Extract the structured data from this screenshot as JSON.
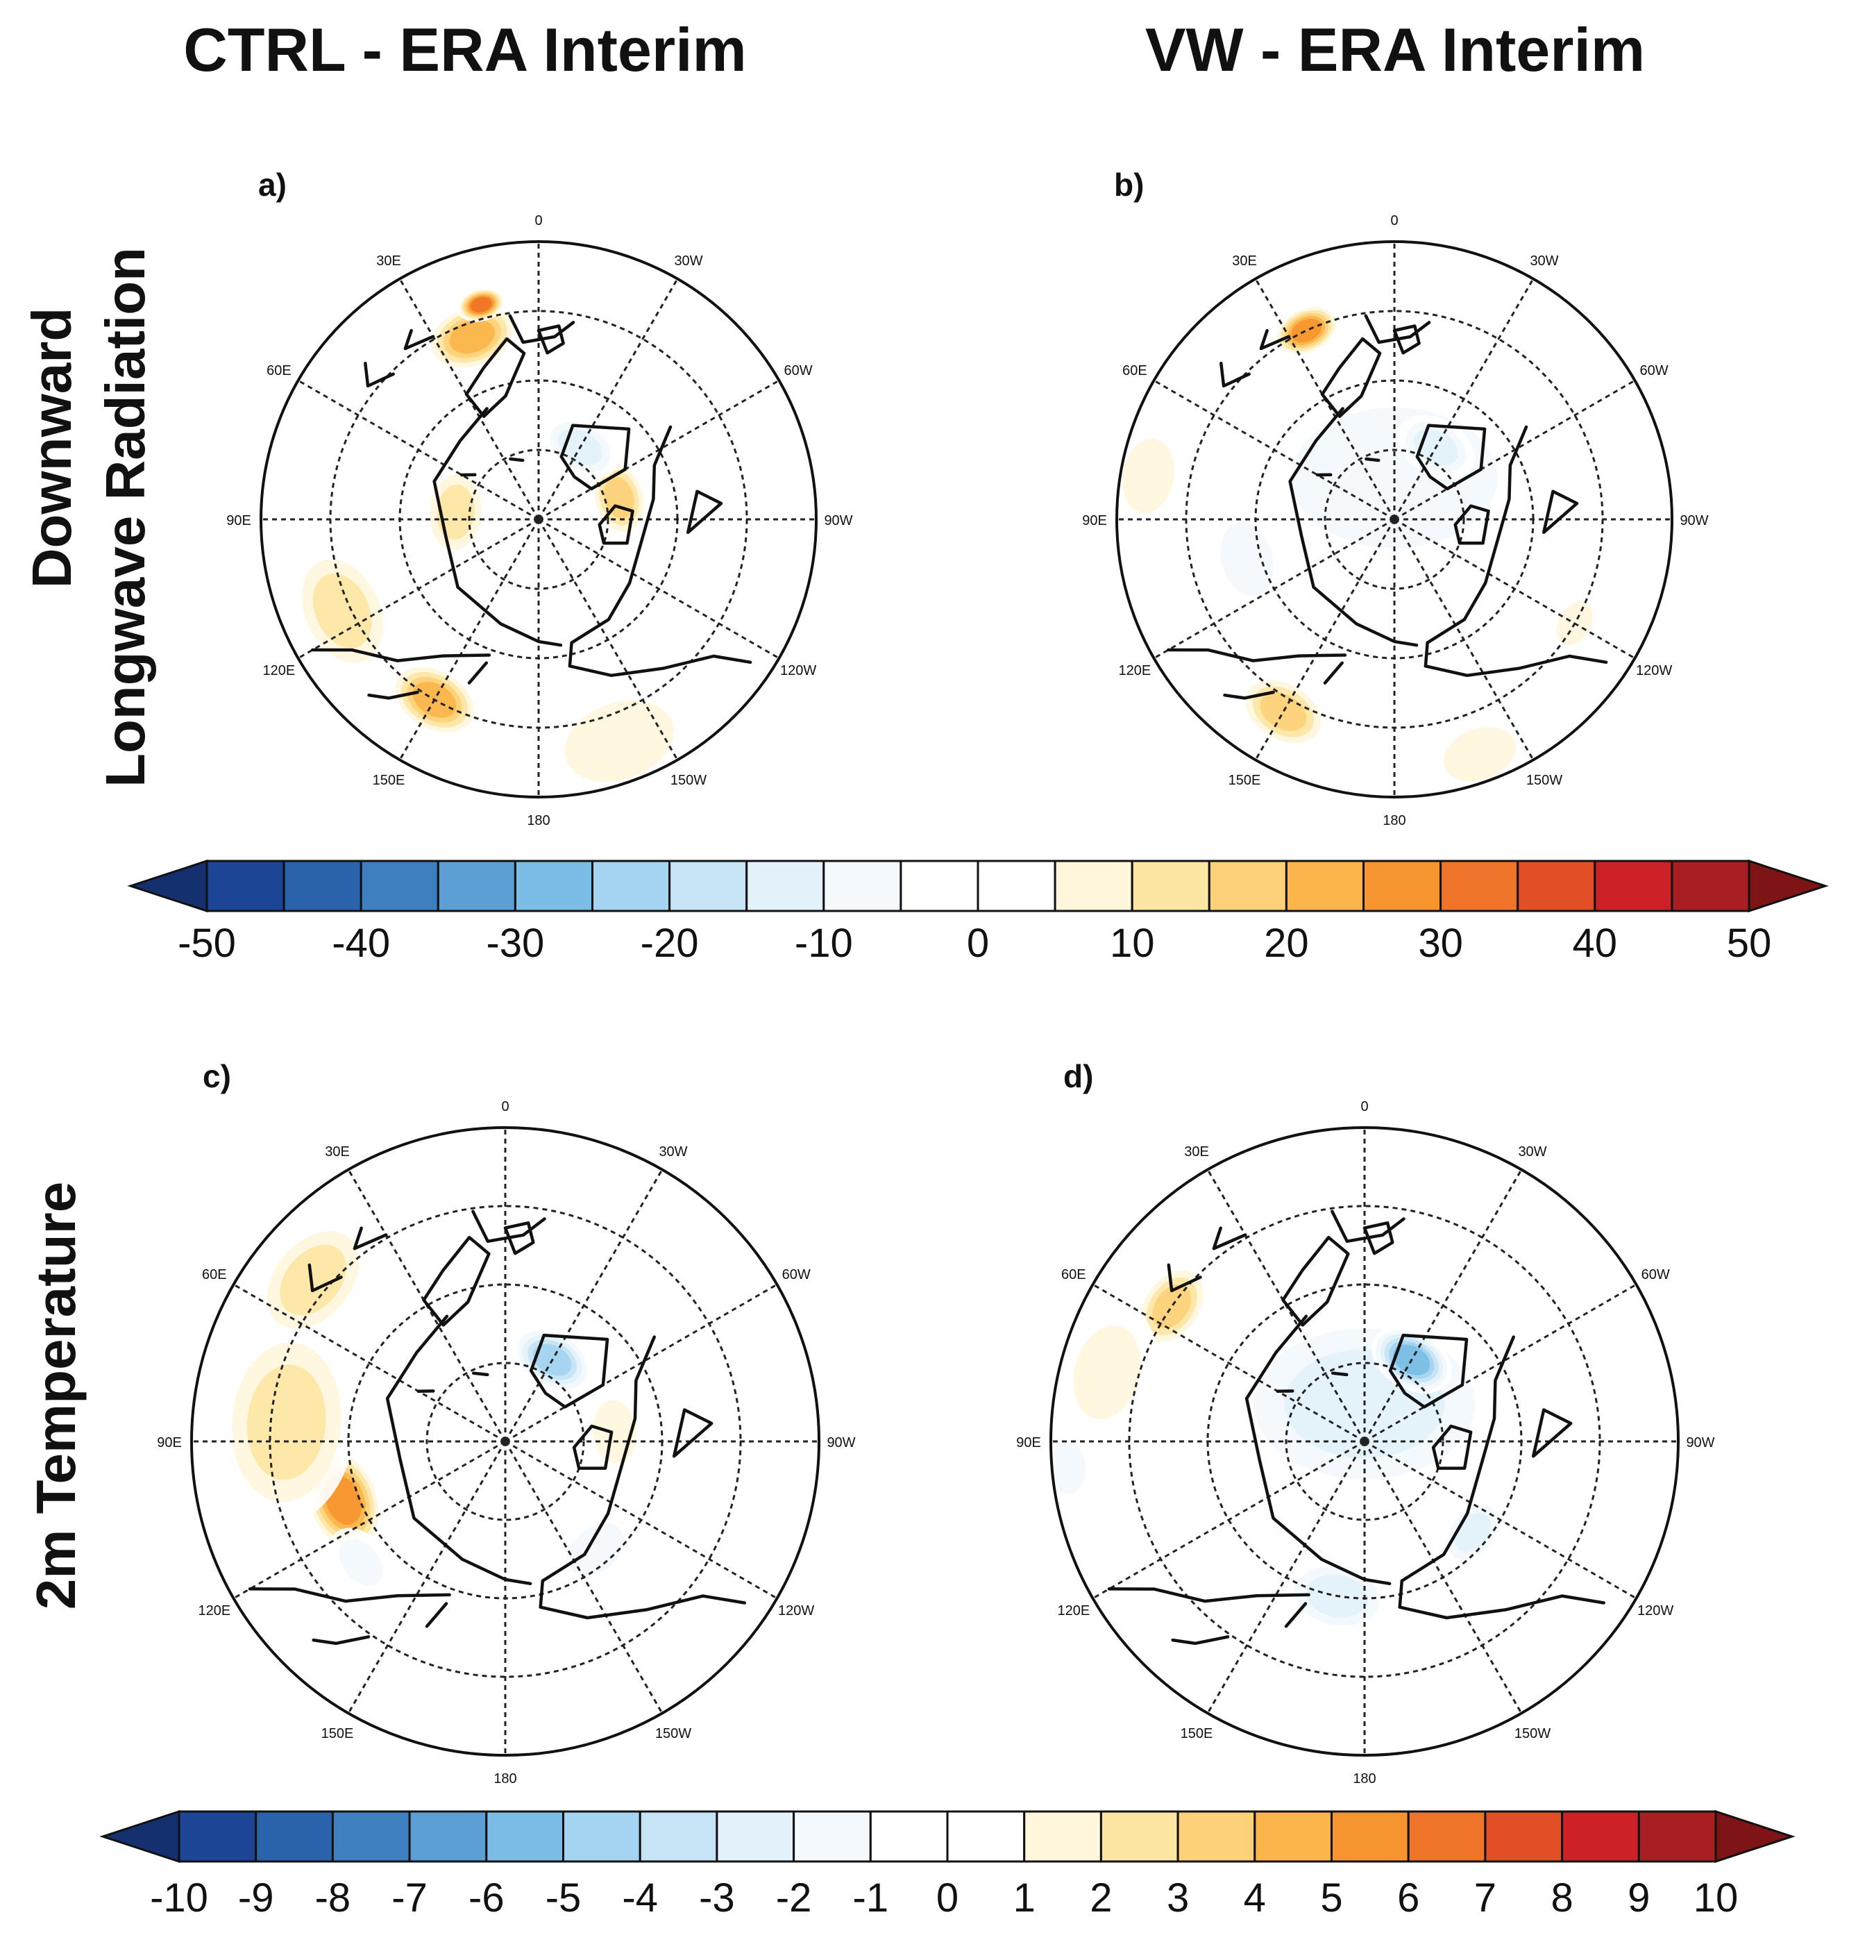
{
  "figure": {
    "column_titles": [
      "CTRL - ERA Interim",
      "VW - ERA Interim"
    ],
    "row_titles": [
      {
        "line1": "Downward",
        "line2": "Longwave Radiation"
      },
      {
        "line1": "2m Temperature",
        "line2": ""
      }
    ],
    "longitude_labels": [
      "0",
      "30W",
      "60W",
      "90W",
      "120W",
      "150W",
      "180",
      "150E",
      "120E",
      "90E",
      "60E",
      "30E"
    ],
    "panels": [
      {
        "id": "a",
        "label": "a)",
        "variable": "Downward Longwave Radiation",
        "experiment": "CTRL - ERA Interim",
        "anomalies": [
          {
            "level": 15,
            "lon": 115,
            "r": 0.78,
            "weight": 1.0
          },
          {
            "level": 25,
            "lon": 150,
            "r": 0.75,
            "weight": 0.7
          },
          {
            "level": 25,
            "lon": 20,
            "r": 0.7,
            "weight": 0.7
          },
          {
            "level": 35,
            "lon": 15,
            "r": 0.8,
            "weight": 0.35
          },
          {
            "level": 20,
            "lon": -75,
            "r": 0.3,
            "weight": 0.6
          },
          {
            "level": 15,
            "lon": 85,
            "r": 0.3,
            "weight": 0.7
          },
          {
            "level": 10,
            "lon": -160,
            "r": 0.85,
            "weight": 1.2
          },
          {
            "level": -15,
            "lon": -30,
            "r": 0.3,
            "weight": 0.6
          },
          {
            "level": -5,
            "lon": -10,
            "r": 0.9,
            "weight": 0.6
          },
          {
            "level": -5,
            "lon": 75,
            "r": 0.95,
            "weight": 0.5
          }
        ]
      },
      {
        "id": "b",
        "label": "b)",
        "variable": "Downward Longwave Radiation",
        "experiment": "VW - ERA Interim",
        "anomalies": [
          {
            "level": -10,
            "lon": 0,
            "r": 0.15,
            "weight": 2.2
          },
          {
            "level": -15,
            "lon": -30,
            "r": 0.3,
            "weight": 0.6
          },
          {
            "level": -10,
            "lon": 105,
            "r": 0.55,
            "weight": 0.8
          },
          {
            "level": 30,
            "lon": 25,
            "r": 0.75,
            "weight": 0.5
          },
          {
            "level": 20,
            "lon": 150,
            "r": 0.8,
            "weight": 0.7
          },
          {
            "level": 10,
            "lon": 80,
            "r": 0.9,
            "weight": 0.8
          },
          {
            "level": 10,
            "lon": -160,
            "r": 0.9,
            "weight": 0.8
          },
          {
            "level": 10,
            "lon": -120,
            "r": 0.75,
            "weight": 0.5
          }
        ]
      },
      {
        "id": "c",
        "label": "c)",
        "variable": "2m Temperature",
        "experiment": "CTRL - ERA Interim",
        "anomalies": [
          {
            "level": 6,
            "lon": 110,
            "r": 0.55,
            "weight": 0.7
          },
          {
            "level": 3,
            "lon": 85,
            "r": 0.7,
            "weight": 1.3
          },
          {
            "level": 3,
            "lon": 50,
            "r": 0.8,
            "weight": 0.9
          },
          {
            "level": -5,
            "lon": -30,
            "r": 0.3,
            "weight": 0.55
          },
          {
            "level": 2,
            "lon": -85,
            "r": 0.35,
            "weight": 0.6
          },
          {
            "level": -2,
            "lon": -140,
            "r": 0.45,
            "weight": 0.6
          },
          {
            "level": -2,
            "lon": 130,
            "r": 0.6,
            "weight": 0.5
          }
        ]
      },
      {
        "id": "d",
        "label": "d)",
        "variable": "2m Temperature",
        "experiment": "VW - ERA Interim",
        "anomalies": [
          {
            "level": -3,
            "lon": 0,
            "r": 0.12,
            "weight": 1.8
          },
          {
            "level": -6,
            "lon": -30,
            "r": 0.3,
            "weight": 0.55
          },
          {
            "level": -3,
            "lon": 170,
            "r": 0.5,
            "weight": 0.7
          },
          {
            "level": -3,
            "lon": -130,
            "r": 0.45,
            "weight": 0.5
          },
          {
            "level": 4,
            "lon": 55,
            "r": 0.75,
            "weight": 0.6
          },
          {
            "level": 2,
            "lon": 75,
            "r": 0.85,
            "weight": 0.9
          },
          {
            "level": -2,
            "lon": 95,
            "r": 0.95,
            "weight": 0.5
          }
        ]
      }
    ],
    "colorbars": [
      {
        "id": "dlr",
        "variable": "Downward Longwave Radiation",
        "levels": [
          -50,
          -45,
          -40,
          -35,
          -30,
          -25,
          -20,
          -15,
          -10,
          -5,
          0,
          5,
          10,
          15,
          20,
          25,
          30,
          35,
          40,
          45,
          50
        ],
        "labels": [
          "-50",
          "-40",
          "-30",
          "-20",
          "-10",
          "0",
          "10",
          "20",
          "30",
          "40",
          "50"
        ]
      },
      {
        "id": "t2m",
        "variable": "2m Temperature",
        "levels": [
          -10,
          -9,
          -8,
          -7,
          -6,
          -5,
          -4,
          -3,
          -2,
          -1,
          0,
          1,
          2,
          3,
          4,
          5,
          6,
          7,
          8,
          9,
          10
        ],
        "labels": [
          "-10",
          "-9",
          "-8",
          "-7",
          "-6",
          "-5",
          "-4",
          "-3",
          "-2",
          "-1",
          "0",
          "1",
          "2",
          "3",
          "4",
          "5",
          "6",
          "7",
          "8",
          "9",
          "10"
        ]
      }
    ],
    "palette": [
      "#14306e",
      "#1c4596",
      "#2a62ac",
      "#3e7fc0",
      "#5b9fd4",
      "#7bbde5",
      "#a4d4f0",
      "#c6e4f5",
      "#e2f1fa",
      "#f3f9fd",
      "#ffffff",
      "#ffffff",
      "#fff6dc",
      "#fde6a4",
      "#fdd07a",
      "#fbb54b",
      "#f6952e",
      "#ef7428",
      "#e24e25",
      "#cc2126",
      "#a91e22",
      "#7e1416"
    ]
  }
}
